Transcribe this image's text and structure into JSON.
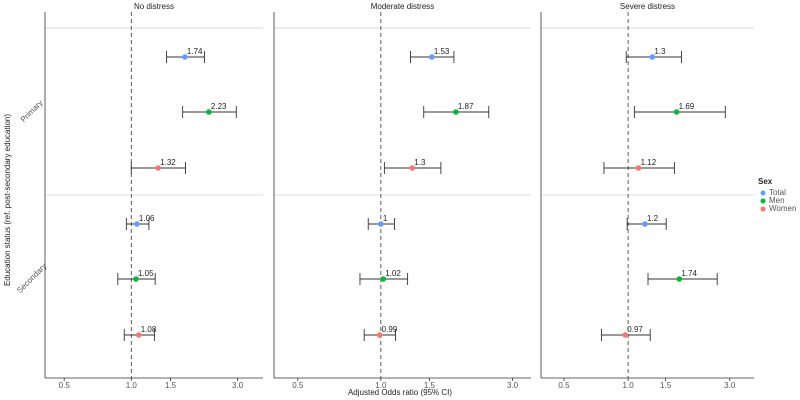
{
  "chart_data": {
    "type": "forest",
    "x_label": "Adjusted Odds ratio (95% CI)",
    "y_label": "Education status (ref. post-secondary education)",
    "legend_title": "Sex",
    "log_x": true,
    "reference_line": 1,
    "categories": [
      "Primary",
      "Secondary"
    ],
    "series": [
      {
        "name": "Total",
        "color": "#619cff"
      },
      {
        "name": "Men",
        "color": "#00ba38"
      },
      {
        "name": "Women",
        "color": "#f8766d"
      }
    ],
    "panels": [
      {
        "title": "No distress",
        "xlim": [
          0.41,
          3.9
        ],
        "xticks": [
          0.5,
          {
            "value": 1,
            "label": "1.0"
          },
          1.5,
          {
            "value": 3,
            "label": "3.0"
          }
        ],
        "series": [
          {
            "values": [
              1.74,
              1.06
            ],
            "lower": [
              1.44,
              0.95
            ],
            "upper": [
              2.13,
              1.2
            ]
          },
          {
            "values": [
              2.23,
              1.05
            ],
            "lower": [
              1.7,
              0.87
            ],
            "upper": [
              2.96,
              1.28
            ]
          },
          {
            "values": [
              1.32,
              1.08
            ],
            "lower": [
              1.0,
              0.93
            ],
            "upper": [
              1.75,
              1.27
            ]
          }
        ]
      },
      {
        "title": "Moderate distress",
        "xlim": [
          0.41,
          3.5
        ],
        "xticks": [
          0.5,
          {
            "value": 1,
            "label": "1.0"
          },
          1.5,
          {
            "value": 3,
            "label": "3.0"
          }
        ],
        "series": [
          {
            "values": [
              1.53,
              1
            ],
            "lower": [
              1.28,
              0.9
            ],
            "upper": [
              1.84,
              1.12
            ]
          },
          {
            "values": [
              1.87,
              1.02
            ],
            "lower": [
              1.43,
              0.84
            ],
            "upper": [
              2.46,
              1.25
            ]
          },
          {
            "values": [
              1.3,
              0.99
            ],
            "lower": [
              1.03,
              0.87
            ],
            "upper": [
              1.65,
              1.13
            ]
          }
        ]
      },
      {
        "title": "Severe distress",
        "xlim": [
          0.39,
          3.9
        ],
        "xticks": [
          0.5,
          {
            "value": 1,
            "label": "1.0"
          },
          1.5,
          {
            "value": 3,
            "label": "3.0"
          }
        ],
        "series": [
          {
            "values": [
              1.3,
              1.2
            ],
            "lower": [
              0.98,
              0.99
            ],
            "upper": [
              1.78,
              1.51
            ]
          },
          {
            "values": [
              1.69,
              1.74
            ],
            "lower": [
              1.07,
              1.24
            ],
            "upper": [
              2.86,
              2.62
            ]
          },
          {
            "values": [
              1.12,
              0.97
            ],
            "lower": [
              0.77,
              0.75
            ],
            "upper": [
              1.65,
              1.27
            ]
          }
        ]
      }
    ]
  }
}
